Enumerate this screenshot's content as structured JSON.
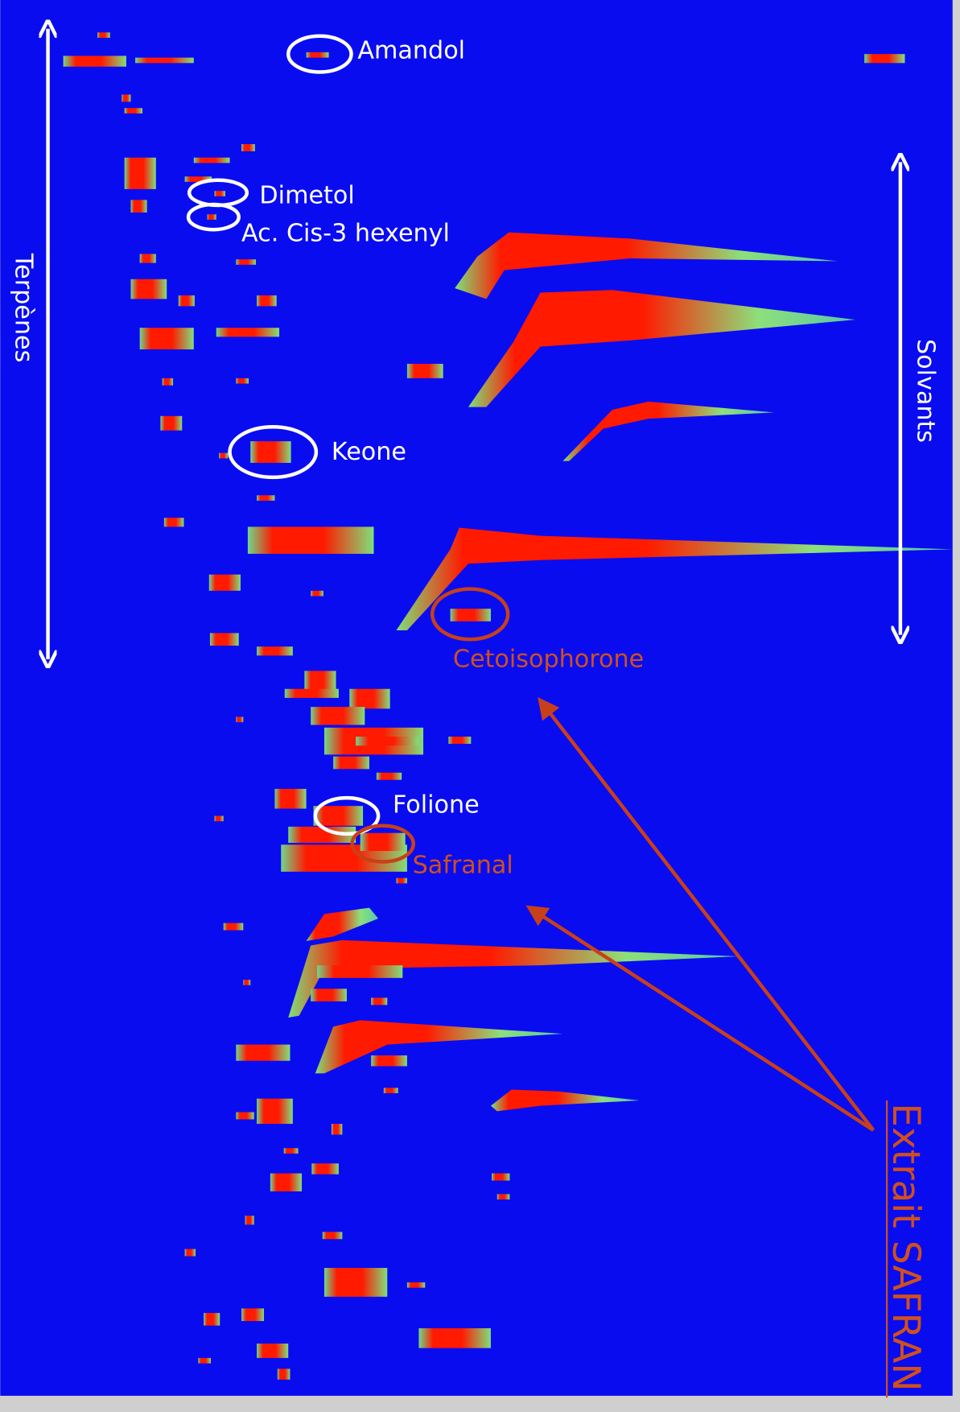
{
  "title": "Extrait SAFRAN",
  "ranges": [
    "Terpènes",
    "Solvants"
  ],
  "compounds": [
    {
      "label": "Amandol"
    },
    {
      "label": "Dimetol"
    },
    {
      "label": "Ac. Cis-3 hexenyl"
    },
    {
      "label": "Keone"
    },
    {
      "label": "Cetoisophorone"
    },
    {
      "label": "Folione"
    },
    {
      "label": "Safranal"
    }
  ]
}
